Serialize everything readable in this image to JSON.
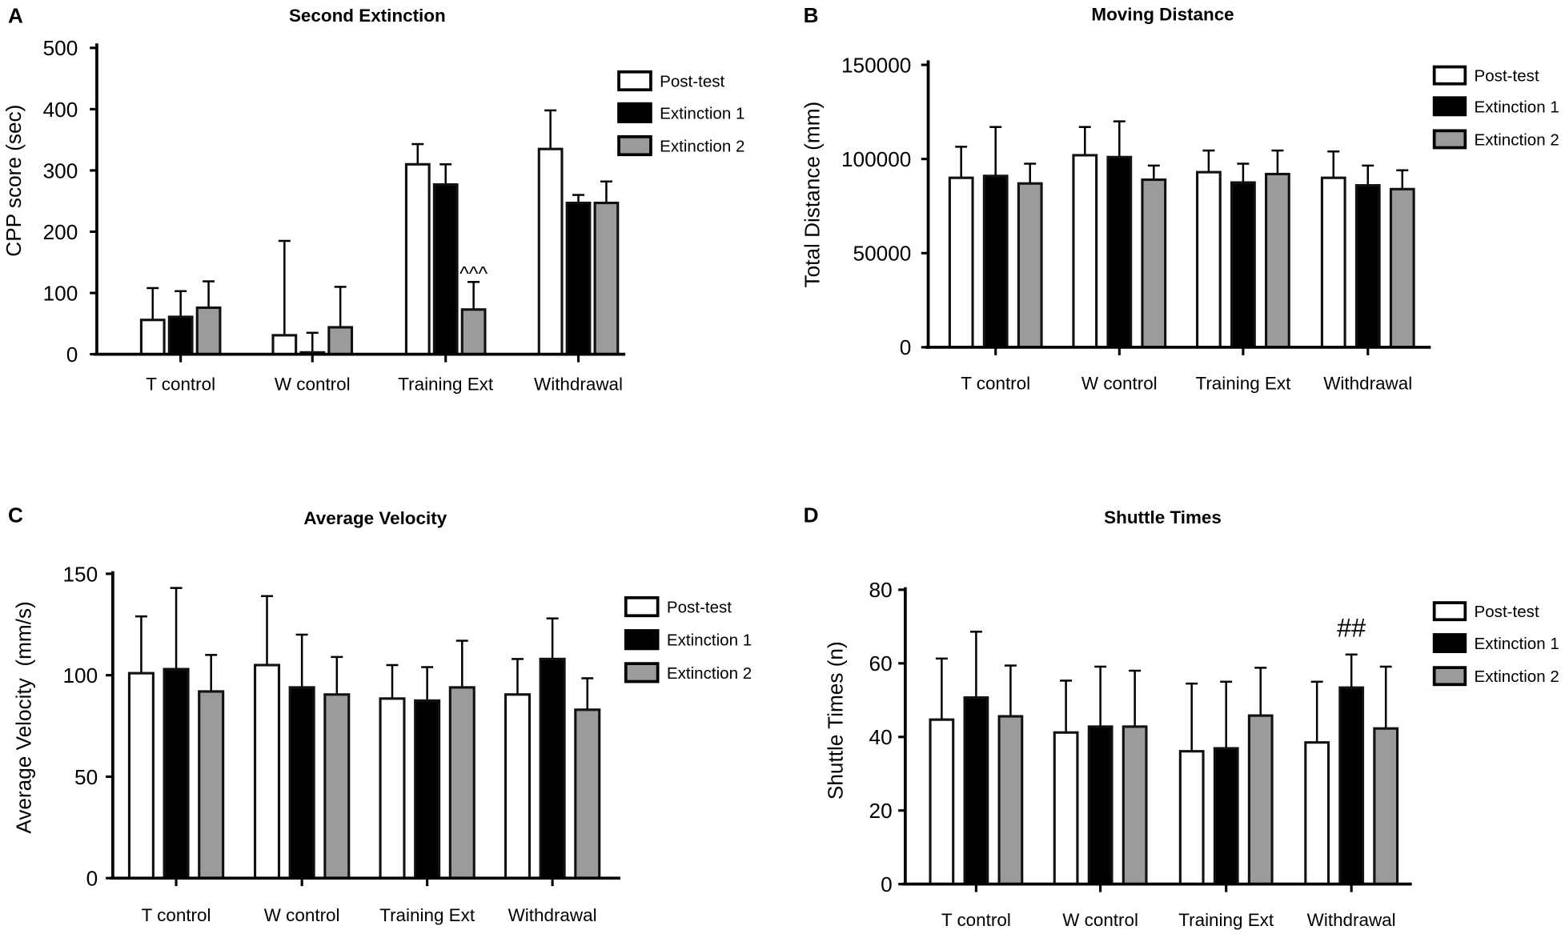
{
  "chart_data": [
    {
      "panel": "A",
      "type": "bar",
      "title": "Second Extinction",
      "ylabel": "CPP score (sec)",
      "ylim": [
        0,
        500
      ],
      "yticks": [
        0,
        100,
        200,
        300,
        400,
        500
      ],
      "categories": [
        "T control",
        "W control",
        "Training Ext",
        "Withdrawal"
      ],
      "series": [
        {
          "name": "Post-test",
          "color": "#ffffff",
          "values": [
            56,
            31,
            310,
            335
          ],
          "errors": [
            52,
            154,
            33,
            63
          ]
        },
        {
          "name": "Extinction 1",
          "color": "#000000",
          "values": [
            61,
            3,
            277,
            247
          ],
          "errors": [
            42,
            32,
            33,
            13
          ]
        },
        {
          "name": "Extinction 2",
          "color": "#9b9b9b",
          "values": [
            76,
            44,
            73,
            247
          ],
          "errors": [
            43,
            66,
            45,
            35
          ]
        }
      ],
      "annotations": [
        {
          "text": "^^^",
          "category": "Training Ext",
          "series": "Extinction 2"
        }
      ]
    },
    {
      "panel": "B",
      "type": "bar",
      "title": "Moving Distance",
      "ylabel": "Total Distance (mm)",
      "ylim": [
        0,
        150000
      ],
      "yticks": [
        0,
        50000,
        100000,
        150000
      ],
      "categories": [
        "T control",
        "W control",
        "Training Ext",
        "Withdrawal"
      ],
      "series": [
        {
          "name": "Post-test",
          "color": "#ffffff",
          "values": [
            90000,
            102000,
            93000,
            90000
          ],
          "errors": [
            16500,
            15000,
            11500,
            14000
          ]
        },
        {
          "name": "Extinction 1",
          "color": "#000000",
          "values": [
            91000,
            101000,
            87500,
            86000
          ],
          "errors": [
            26000,
            19000,
            10000,
            10500
          ]
        },
        {
          "name": "Extinction 2",
          "color": "#9b9b9b",
          "values": [
            87000,
            89000,
            92000,
            84000
          ],
          "errors": [
            10500,
            7500,
            12500,
            10000
          ]
        }
      ],
      "annotations": []
    },
    {
      "panel": "C",
      "type": "bar",
      "title": "Average Velocity",
      "ylabel": "Average Velocity  (mm/s)",
      "ylim": [
        0,
        150
      ],
      "yticks": [
        0,
        50,
        100,
        150
      ],
      "categories": [
        "T control",
        "W control",
        "Training Ext",
        "Withdrawal"
      ],
      "series": [
        {
          "name": "Post-test",
          "color": "#ffffff",
          "values": [
            101,
            105,
            88.5,
            90.5
          ],
          "errors": [
            28,
            34,
            16.5,
            17.5
          ]
        },
        {
          "name": "Extinction 1",
          "color": "#000000",
          "values": [
            103,
            94,
            87.5,
            108
          ],
          "errors": [
            40,
            26,
            16.5,
            20
          ]
        },
        {
          "name": "Extinction 2",
          "color": "#9b9b9b",
          "values": [
            92,
            90.5,
            94,
            83
          ],
          "errors": [
            18,
            18.5,
            23,
            15.5
          ]
        }
      ],
      "annotations": []
    },
    {
      "panel": "D",
      "type": "bar",
      "title": "Shuttle Times",
      "ylabel": "Shuttle Times (n)",
      "ylim": [
        0,
        80
      ],
      "yticks": [
        0,
        20,
        40,
        60,
        80
      ],
      "categories": [
        "T control",
        "W control",
        "Training Ext",
        "Withdrawal"
      ],
      "series": [
        {
          "name": "Post-test",
          "color": "#ffffff",
          "values": [
            44.7,
            41.2,
            36.1,
            38.5
          ],
          "errors": [
            16.6,
            14.1,
            18.4,
            16.5
          ]
        },
        {
          "name": "Extinction 1",
          "color": "#000000",
          "values": [
            50.7,
            42.8,
            36.9,
            53.4
          ],
          "errors": [
            17.9,
            16.3,
            18.1,
            9
          ]
        },
        {
          "name": "Extinction 2",
          "color": "#9b9b9b",
          "values": [
            45.6,
            42.8,
            45.8,
            42.3
          ],
          "errors": [
            13.8,
            15.2,
            13,
            16.8
          ]
        }
      ],
      "annotations": [
        {
          "text": "##",
          "category": "Withdrawal",
          "series": "Extinction 1"
        }
      ]
    }
  ]
}
